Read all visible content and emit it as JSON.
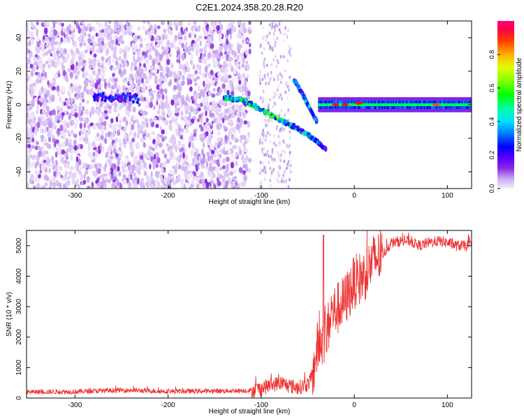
{
  "title": "C2E1.2024.358.20.28.R20",
  "chart_data": [
    {
      "type": "heatmap",
      "xlabel": "Height of straight line (km)",
      "ylabel": "Frequency (Hz)",
      "xlim": [
        -352,
        126
      ],
      "ylim": [
        -50,
        50
      ],
      "xticks": [
        -300,
        -200,
        -100,
        0,
        100
      ],
      "yticks": [
        -40,
        -20,
        0,
        20,
        40
      ],
      "colorbar": {
        "label": "Normalized spectral amplitude",
        "range": [
          0,
          1
        ],
        "ticks": [
          0.0,
          0.2,
          0.4,
          0.6,
          0.8
        ],
        "colormap": [
          "#ffffff",
          "#c8a8f0",
          "#8a2be2",
          "#5a00ff",
          "#0000ff",
          "#00c8ff",
          "#00ff80",
          "#00ff00",
          "#c8ff00",
          "#ffd000",
          "#ff6000",
          "#ff0000",
          "#ff0080"
        ]
      },
      "features": {
        "noise_region": {
          "x": [
            -352,
            -112
          ],
          "freq": [
            -50,
            50
          ],
          "amplitude": 0.15
        },
        "gap_noise_region": {
          "x": [
            -102,
            -68
          ],
          "freq": [
            -50,
            50
          ],
          "amplitude": 0.08
        },
        "carrier_trace": [
          {
            "x": -140,
            "freq": 4,
            "amplitude": 0.45
          },
          {
            "x": -120,
            "freq": 3,
            "amplitude": 0.45
          },
          {
            "x": -100,
            "freq": -3,
            "amplitude": 0.5
          },
          {
            "x": -80,
            "freq": -9,
            "amplitude": 0.5
          },
          {
            "x": -65,
            "freq": -13,
            "amplitude": 0.45
          },
          {
            "x": -50,
            "freq": -18,
            "amplitude": 0.4
          },
          {
            "x": -40,
            "freq": -22,
            "amplitude": 0.35
          },
          {
            "x": -30,
            "freq": -27,
            "amplitude": 0.2
          }
        ],
        "crossing_trace": [
          {
            "x": -65,
            "freq": 15,
            "amplitude": 0.35
          },
          {
            "x": -55,
            "freq": 6,
            "amplitude": 0.4
          },
          {
            "x": -48,
            "freq": -2,
            "amplitude": 0.35
          },
          {
            "x": -40,
            "freq": -10,
            "amplitude": 0.3
          }
        ],
        "stable_band": {
          "x": [
            -38,
            126
          ],
          "freq": 0,
          "amplitude": 0.5
        },
        "hot_points": [
          {
            "x": -20,
            "freq": 0,
            "amplitude": 0.95
          },
          {
            "x": -10,
            "freq": 0,
            "amplitude": 0.9
          },
          {
            "x": 5,
            "freq": 1,
            "amplitude": 0.9
          },
          {
            "x": 88,
            "freq": 0,
            "amplitude": 0.85
          }
        ]
      }
    },
    {
      "type": "line",
      "xlabel": "Height of straight line (km)",
      "ylabel": "SNR (10 * v/v)",
      "xlim": [
        -352,
        126
      ],
      "ylim": [
        0,
        5500
      ],
      "xticks": [
        -300,
        -200,
        -100,
        0,
        100
      ],
      "yticks": [
        0,
        1000,
        2000,
        3000,
        4000,
        5000
      ],
      "series": [
        {
          "color": "#ee3333",
          "x": [
            -352,
            -300,
            -250,
            -200,
            -150,
            -110,
            -100,
            -90,
            -80,
            -70,
            -60,
            -50,
            -45,
            -40,
            -35,
            -30,
            -25,
            -20,
            -15,
            -10,
            -5,
            0,
            10,
            20,
            30,
            40,
            50,
            60,
            70,
            80,
            90,
            100,
            110,
            126
          ],
          "y": [
            200,
            210,
            260,
            220,
            230,
            250,
            320,
            420,
            500,
            400,
            350,
            450,
            700,
            1600,
            1900,
            2000,
            2800,
            2900,
            3000,
            3200,
            3500,
            3800,
            4000,
            4500,
            4700,
            5100,
            5150,
            5150,
            5000,
            5100,
            5150,
            5100,
            5000,
            5000
          ]
        }
      ],
      "annotations": {
        "noise_amplitude": [
          {
            "x": [
              -352,
              -110
            ],
            "amp": 80
          },
          {
            "x": [
              -110,
              -45
            ],
            "amp": 250
          },
          {
            "x": [
              -45,
              30
            ],
            "amp": 900
          },
          {
            "x": [
              30,
              126
            ],
            "amp": 180
          }
        ],
        "spike": {
          "x": -33,
          "y": 5350
        }
      }
    }
  ]
}
